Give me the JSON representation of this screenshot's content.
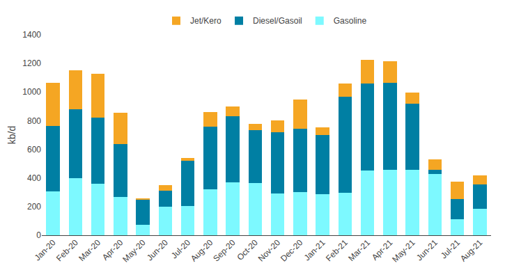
{
  "chart_data": {
    "type": "bar",
    "stacked": true,
    "categories": [
      "Jan-20",
      "Feb-20",
      "Mar-20",
      "Apr-20",
      "May-20",
      "Jun-20",
      "Jul-20",
      "Aug-20",
      "Sep-20",
      "Oct-20",
      "Nov-20",
      "Dec-20",
      "Jan-21",
      "Feb-21",
      "Mar-21",
      "Apr-21",
      "May-21",
      "Jun-21",
      "Jul-21",
      "Aug-21"
    ],
    "series": [
      {
        "name": "Gasoline",
        "color": "#7df9ff",
        "values": [
          305,
          400,
          360,
          265,
          75,
          200,
          205,
          320,
          370,
          365,
          290,
          300,
          285,
          295,
          450,
          455,
          455,
          430,
          110,
          185
        ]
      },
      {
        "name": "Diesel/Gasoil",
        "color": "#007fa3",
        "values": [
          460,
          480,
          460,
          370,
          175,
          110,
          315,
          440,
          460,
          370,
          430,
          445,
          415,
          670,
          610,
          610,
          465,
          25,
          145,
          170
        ]
      },
      {
        "name": "Jet/Kero",
        "color": "#f5a623",
        "values": [
          300,
          270,
          310,
          220,
          10,
          40,
          20,
          100,
          70,
          45,
          80,
          205,
          55,
          95,
          165,
          150,
          75,
          75,
          120,
          65
        ]
      }
    ],
    "ylabel": "kb/d",
    "ylim": [
      0,
      1400
    ],
    "yticks": [
      0,
      200,
      400,
      600,
      800,
      1000,
      1200,
      1400
    ],
    "grid": false,
    "legend": "top"
  }
}
